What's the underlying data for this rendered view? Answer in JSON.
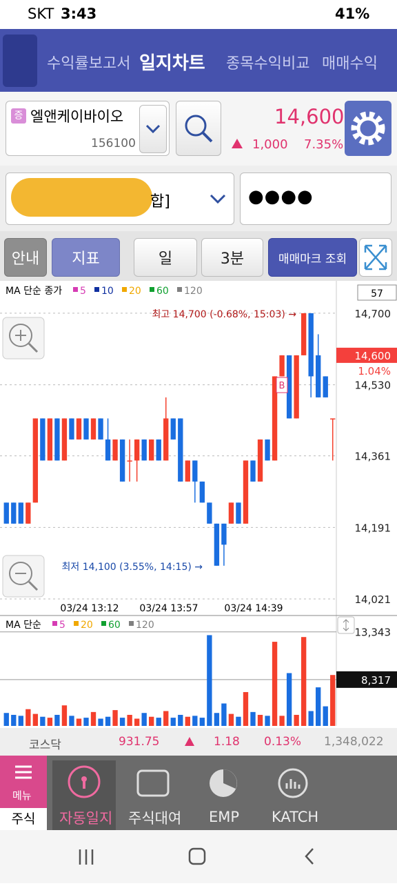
{
  "status_bar": {
    "carrier": "SKT",
    "time": "3:43",
    "battery": "41%"
  },
  "tabs": [
    "수익률보고서",
    "일지차트",
    "종목수익비교",
    "매매수익"
  ],
  "stock": {
    "badge": "증",
    "name": "엘앤케이바이오",
    "code": "156100",
    "price": "14,600",
    "change": "1,000",
    "rate": "7.35%"
  },
  "account": {
    "name": "합]",
    "password": "●●●●"
  },
  "toolbar": [
    "안내",
    "지표",
    "일",
    "3분",
    "매매마크 조회"
  ],
  "chart_data": {
    "type": "candlestick",
    "legend_title": "MA 단순 종가",
    "ma": [
      {
        "name": "5",
        "color": "#d63cb4"
      },
      {
        "name": "10",
        "color": "#1030a0"
      },
      {
        "name": "20",
        "color": "#f0a800"
      },
      {
        "name": "60",
        "color": "#10a030"
      },
      {
        "name": "120",
        "color": "#808080"
      }
    ],
    "open": [
      14250,
      14250,
      14250,
      14200,
      14250,
      14450,
      14350,
      14450,
      14350,
      14450,
      14400,
      14450,
      14400,
      14450,
      14400,
      14350,
      14400,
      14350,
      14350,
      14400,
      14350,
      14400,
      14350,
      14450,
      14450,
      14300,
      14350,
      14300,
      14250,
      14200,
      14200,
      14200,
      14250,
      14200,
      14350,
      14300,
      14400,
      14350,
      14550,
      14600,
      14450,
      14600,
      14700,
      14600,
      14550,
      14450
    ],
    "high": [
      14250,
      14250,
      14250,
      14250,
      14450,
      14450,
      14450,
      14450,
      14450,
      14450,
      14450,
      14450,
      14450,
      14450,
      14450,
      14400,
      14400,
      14400,
      14400,
      14400,
      14400,
      14400,
      14500,
      14450,
      14450,
      14350,
      14350,
      14300,
      14250,
      14200,
      14200,
      14250,
      14250,
      14350,
      14350,
      14400,
      14400,
      14550,
      14600,
      14600,
      14600,
      14700,
      14700,
      14650,
      14550,
      14450
    ],
    "low": [
      14200,
      14200,
      14200,
      14200,
      14250,
      14350,
      14350,
      14350,
      14350,
      14400,
      14400,
      14400,
      14400,
      14400,
      14350,
      14350,
      14300,
      14300,
      14300,
      14350,
      14350,
      14350,
      14350,
      14400,
      14300,
      14300,
      14250,
      14250,
      14200,
      14100,
      14100,
      14200,
      14200,
      14200,
      14300,
      14300,
      14350,
      14350,
      14550,
      14450,
      14450,
      14600,
      14500,
      14500,
      14500,
      14350
    ],
    "close": [
      14200,
      14200,
      14200,
      14250,
      14450,
      14350,
      14450,
      14350,
      14450,
      14400,
      14450,
      14400,
      14450,
      14400,
      14350,
      14400,
      14300,
      14350,
      14400,
      14350,
      14400,
      14350,
      14450,
      14400,
      14300,
      14350,
      14300,
      14250,
      14200,
      14100,
      14150,
      14250,
      14200,
      14350,
      14300,
      14400,
      14350,
      14550,
      14600,
      14450,
      14600,
      14700,
      14550,
      14500,
      14500,
      14450
    ],
    "up_color": "#f4402c",
    "down_color": "#1a6ee0",
    "ylim": [
      13985,
      14772
    ],
    "yticks": [
      {
        "value": 14700,
        "label": "14,700"
      },
      {
        "value": 14530,
        "label": "14,530"
      },
      {
        "value": 14361,
        "label": "14,361"
      },
      {
        "value": 14191,
        "label": "14,191"
      },
      {
        "value": 14021,
        "label": "14,021"
      }
    ],
    "count_label": "57",
    "current": {
      "value": 14600,
      "label": "14,600"
    },
    "current_rate": "1.04%",
    "x_labels": [
      "03/24 13:12",
      "03/24 13:57",
      "03/24 14:39"
    ],
    "max_note": "최고 14,700 (-0.68%, 15:03) →",
    "min_note": "최저 14,100 (3.55%, 14:15) →",
    "marker": "B"
  },
  "volume_chart": {
    "type": "bar",
    "legend_title": "MA 단순",
    "ma": [
      {
        "name": "5",
        "color": "#d63cb4"
      },
      {
        "name": "20",
        "color": "#f0a800"
      },
      {
        "name": "60",
        "color": "#10a030"
      },
      {
        "name": "120",
        "color": "#808080"
      }
    ],
    "values": [
      4800,
      4600,
      4500,
      5200,
      4700,
      4400,
      4300,
      4600,
      5600,
      4500,
      4200,
      4300,
      4900,
      4200,
      4400,
      5100,
      4300,
      4600,
      4200,
      4800,
      4400,
      4300,
      5000,
      4300,
      4600,
      4400,
      4500,
      4300,
      13000,
      4800,
      5800,
      4700,
      4400,
      7000,
      4900,
      4600,
      4500,
      12300,
      4500,
      9000,
      4600,
      12800,
      5000,
      7500,
      5500,
      8800
    ],
    "ylim": [
      3435,
      14851
    ],
    "yticks": [
      {
        "value": 13343,
        "label": "13,343"
      },
      {
        "value": 8317,
        "label": "8,317"
      }
    ]
  },
  "index_bar": {
    "name": "코스닥",
    "value": "931.75",
    "change": "1.18",
    "rate": "0.13%",
    "volume": "1,348,022"
  },
  "bottom_nav": {
    "menu": "메뉴",
    "tab": "주식",
    "items": [
      "자동일지",
      "주식대여",
      "EMP",
      "KATCH"
    ]
  }
}
